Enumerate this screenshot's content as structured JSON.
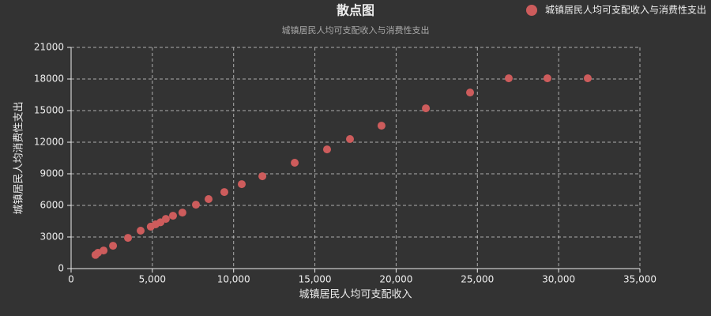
{
  "chart_data": {
    "type": "scatter",
    "title": "散点图",
    "subtitle": "城镇居民人均可支配收入与消费性支出",
    "x_label": "城镇居民人均可支配收入",
    "y_label": "城镇居民人均消费性支出",
    "legend_position": "top-right",
    "grid": true,
    "series": [
      {
        "name": "城镇居民人均可支配收入与消费性支出",
        "color": "#cd5c5c",
        "x": [
          1500,
          1650,
          2000,
          2580,
          3500,
          4280,
          4900,
          5200,
          5500,
          5830,
          6270,
          6850,
          7680,
          8460,
          9430,
          10500,
          11770,
          13760,
          15750,
          17160,
          19100,
          21830,
          24550,
          26930,
          29310,
          31790
        ],
        "values": [
          1300,
          1500,
          1720,
          2170,
          2920,
          3600,
          3980,
          4200,
          4400,
          4720,
          5020,
          5320,
          6070,
          6600,
          7270,
          8020,
          8770,
          10050,
          11320,
          12300,
          13570,
          15220,
          16720,
          18070,
          18070,
          18070
        ]
      }
    ],
    "xlim": [
      0,
      35000
    ],
    "xticks": [
      0,
      {
        "value": 5000,
        "label": "5,000"
      },
      {
        "value": 10000,
        "label": "10,000"
      },
      {
        "value": 15000,
        "label": "15,000"
      },
      {
        "value": 20000,
        "label": "20,000"
      },
      {
        "value": 25000,
        "label": "25,000"
      },
      {
        "value": 30000,
        "label": "30,000"
      },
      {
        "value": 35000,
        "label": "35,000"
      }
    ],
    "ylim": [
      0,
      21000
    ],
    "yticks": [
      0,
      3000,
      6000,
      9000,
      12000,
      15000,
      18000,
      21000
    ]
  }
}
